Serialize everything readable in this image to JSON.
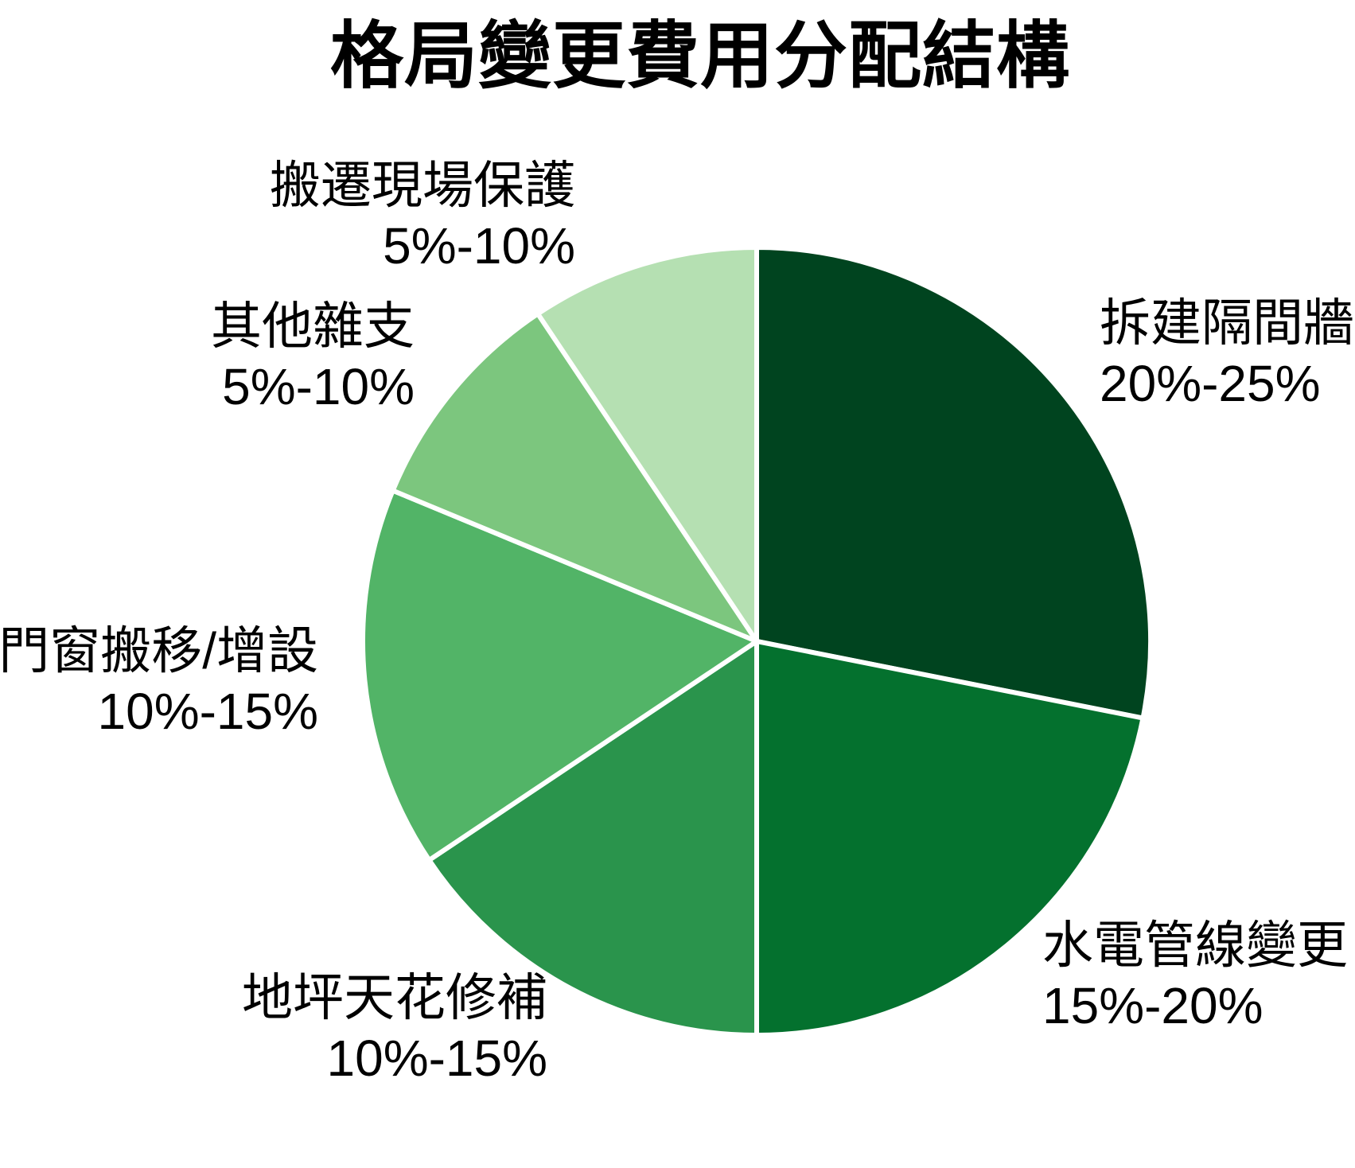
{
  "title": "格局變更費用分配結構",
  "chart_data": {
    "type": "pie",
    "title": "格局變更費用分配結構",
    "direction": "clockwise",
    "start_angle": "12-oclock",
    "legend_position": "none",
    "wedge_edge_color": "#ffffff",
    "background_color": "#ffffff",
    "slices": [
      {
        "label": "拆建隔間牆",
        "range": "20%-25%",
        "value_mid_pct": 22.5,
        "color": "#00441f"
      },
      {
        "label": "水電管線變更",
        "range": "15%-20%",
        "value_mid_pct": 17.5,
        "color": "#04712e"
      },
      {
        "label": "地坪天花修補",
        "range": "10%-15%",
        "value_mid_pct": 12.5,
        "color": "#2a944c"
      },
      {
        "label": "門窗搬移/增設",
        "range": "10%-15%",
        "value_mid_pct": 12.5,
        "color": "#52b467"
      },
      {
        "label": "其他雜支",
        "range": "5%-10%",
        "value_mid_pct": 7.5,
        "color": "#7cc67e"
      },
      {
        "label": "搬遷現場保護",
        "range": "5%-10%",
        "value_mid_pct": 7.5,
        "color": "#b5e0b2"
      }
    ]
  }
}
